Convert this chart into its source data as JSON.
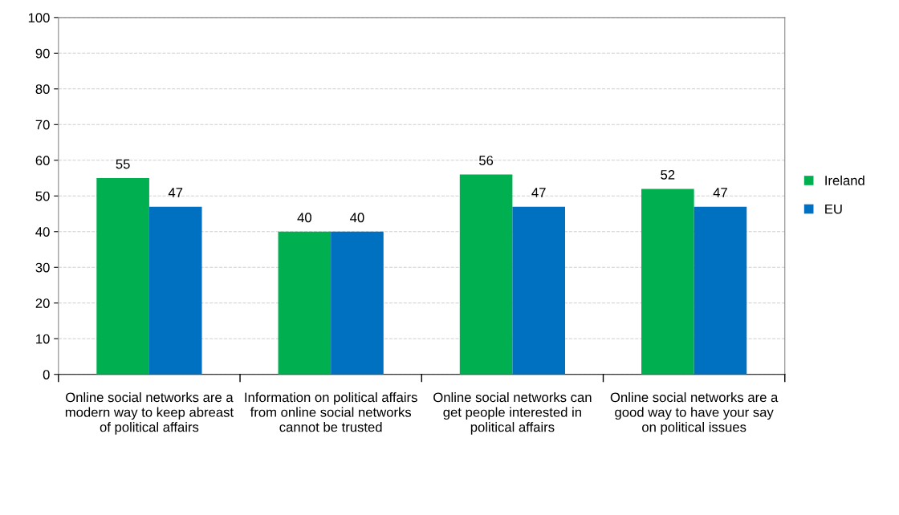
{
  "chart_data": {
    "type": "bar",
    "categories": [
      "Online social networks are a modern way to keep abreast of political affairs",
      "Information on political affairs from online social networks cannot be trusted",
      "Online social networks can get people interested in political affairs",
      "Online social networks are a good way to have your say on political issues"
    ],
    "series": [
      {
        "name": "Ireland",
        "color": "#00b050",
        "values": [
          55,
          40,
          56,
          52
        ]
      },
      {
        "name": "EU",
        "color": "#0070c0",
        "values": [
          47,
          40,
          47,
          47
        ]
      }
    ],
    "ylim": [
      0,
      100
    ],
    "yticks": [
      0,
      10,
      20,
      30,
      40,
      50,
      60,
      70,
      80,
      90,
      100
    ],
    "grid": "y",
    "legend": "right",
    "data_labels": true
  }
}
